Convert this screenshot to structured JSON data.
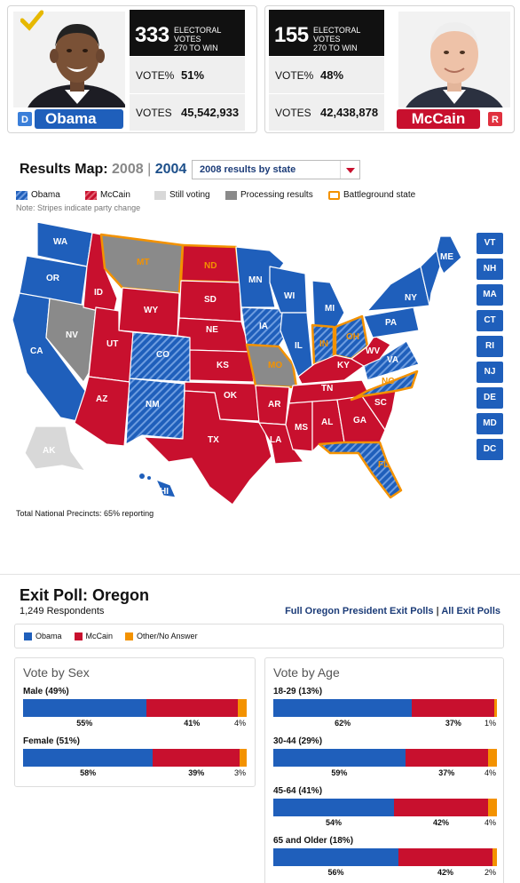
{
  "candidates": {
    "obama": {
      "name": "Obama",
      "party": "D",
      "electoral": "333",
      "ev_line1": "ELECTORAL VOTES",
      "ev_line2": "270 TO WIN",
      "vote_pct_label": "VOTE%",
      "vote_pct": "51%",
      "votes_label": "VOTES",
      "votes": "45,542,933",
      "winner_icon": "checkmark-icon"
    },
    "mccain": {
      "name": "McCain",
      "party": "R",
      "electoral": "155",
      "ev_line1": "ELECTORAL VOTES",
      "ev_line2": "270 TO WIN",
      "vote_pct_label": "VOTE%",
      "vote_pct": "48%",
      "votes_label": "VOTES",
      "votes": "42,438,878"
    }
  },
  "results_map": {
    "title": "Results Map:",
    "year_2008": "2008",
    "separator": "|",
    "year_2004": "2004",
    "select_value": "2008 results by state",
    "legend": [
      {
        "label": "Obama",
        "kind": "obama"
      },
      {
        "label": "McCain",
        "kind": "mccain"
      },
      {
        "label": "Still voting",
        "kind": "still"
      },
      {
        "label": "Processing results",
        "kind": "processing"
      },
      {
        "label": "Battleground state",
        "kind": "battle"
      }
    ],
    "note": "Note: Stripes indicate party change",
    "precincts": "Total National Precincts: 65% reporting",
    "small_states": [
      "VT",
      "NH",
      "MA",
      "CT",
      "RI",
      "NJ",
      "DE",
      "MD",
      "DC"
    ],
    "state_labels": [
      "WA",
      "OR",
      "CA",
      "NV",
      "ID",
      "MT",
      "WY",
      "UT",
      "AZ",
      "CO",
      "NM",
      "ND",
      "SD",
      "NE",
      "KS",
      "OK",
      "TX",
      "MN",
      "IA",
      "MO",
      "AR",
      "LA",
      "WI",
      "IL",
      "MI",
      "IN",
      "OH",
      "KY",
      "TN",
      "MS",
      "AL",
      "GA",
      "FL",
      "SC",
      "NC",
      "VA",
      "WV",
      "PA",
      "NY",
      "ME",
      "AK",
      "HI"
    ],
    "colors": {
      "obama": "#1f5fbb",
      "mccain": "#c8102e",
      "still": "#d8d8d8",
      "processing": "#8a8a8a",
      "battle": "#f39200"
    }
  },
  "exit_poll": {
    "title": "Exit Poll: Oregon",
    "respondents": "1,249 Respondents",
    "link_full": "Full Oregon President Exit Polls",
    "link_sep": "|",
    "link_all": "All Exit Polls",
    "legend": [
      {
        "label": "Obama",
        "color": "#1f5fbb"
      },
      {
        "label": "McCain",
        "color": "#c8102e"
      },
      {
        "label": "Other/No Answer",
        "color": "#f39200"
      }
    ],
    "by_sex": {
      "title": "Vote by Sex",
      "groups": [
        {
          "label": "Male (49%)",
          "obama": 55,
          "mccain": 41,
          "other": 4,
          "obama_text": "55%",
          "mccain_text": "41%",
          "other_text": "4%"
        },
        {
          "label": "Female (51%)",
          "obama": 58,
          "mccain": 39,
          "other": 3,
          "obama_text": "58%",
          "mccain_text": "39%",
          "other_text": "3%"
        }
      ]
    },
    "by_age": {
      "title": "Vote by Age",
      "groups": [
        {
          "label": "18-29 (13%)",
          "obama": 62,
          "mccain": 37,
          "other": 1,
          "obama_text": "62%",
          "mccain_text": "37%",
          "other_text": "1%"
        },
        {
          "label": "30-44 (29%)",
          "obama": 59,
          "mccain": 37,
          "other": 4,
          "obama_text": "59%",
          "mccain_text": "37%",
          "other_text": "4%"
        },
        {
          "label": "45-64 (41%)",
          "obama": 54,
          "mccain": 42,
          "other": 4,
          "obama_text": "54%",
          "mccain_text": "42%",
          "other_text": "4%"
        },
        {
          "label": "65 and Older (18%)",
          "obama": 56,
          "mccain": 42,
          "other": 2,
          "obama_text": "56%",
          "mccain_text": "42%",
          "other_text": "2%"
        }
      ]
    }
  }
}
